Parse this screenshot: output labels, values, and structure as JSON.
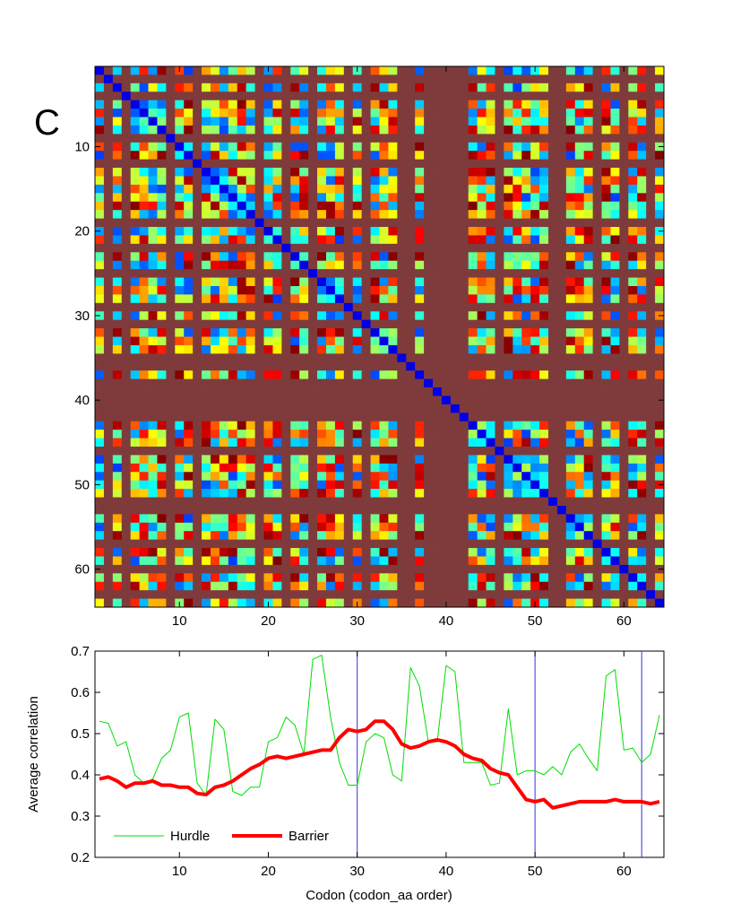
{
  "chart_data": [
    {
      "type": "heatmap",
      "panel_label": "C",
      "rows": 64,
      "cols": 64,
      "xlim": [
        0.5,
        64.5
      ],
      "ylim": [
        0.5,
        64.5
      ],
      "y_direction": "reversed",
      "xticks": [
        10,
        20,
        30,
        40,
        50,
        60
      ],
      "yticks": [
        10,
        20,
        30,
        40,
        50,
        60
      ],
      "colormap": "jet",
      "clim": [
        0,
        1
      ],
      "colors": {
        "masked_cell": "#7f3b3b",
        "jet_low": "#00008f",
        "jet_mid": "#80ff80",
        "jet_high": "#800000"
      },
      "masked_indices": [
        2,
        4,
        9,
        12,
        19,
        22,
        25,
        29,
        31,
        35,
        36,
        38,
        39,
        40,
        41,
        42,
        46,
        52,
        53,
        57,
        60,
        63
      ]
    },
    {
      "type": "line",
      "xlabel": "Codon (codon_aa order)",
      "ylabel": "Average correlation",
      "xlim": [
        0.5,
        64.5
      ],
      "ylim": [
        0.2,
        0.7
      ],
      "xticks": [
        10,
        20,
        30,
        40,
        50,
        60
      ],
      "yticks": [
        0.2,
        0.3,
        0.4,
        0.5,
        0.6,
        0.7
      ],
      "grid": false,
      "legend_position": "bottom-left",
      "x": [
        1,
        2,
        3,
        4,
        5,
        6,
        7,
        8,
        9,
        10,
        11,
        12,
        13,
        14,
        15,
        16,
        17,
        18,
        19,
        20,
        21,
        22,
        23,
        24,
        25,
        26,
        27,
        28,
        29,
        30,
        31,
        32,
        33,
        34,
        35,
        36,
        37,
        38,
        39,
        40,
        41,
        42,
        43,
        44,
        45,
        46,
        47,
        48,
        49,
        50,
        51,
        52,
        53,
        54,
        55,
        56,
        57,
        58,
        59,
        60,
        61,
        62,
        63,
        64
      ],
      "series": [
        {
          "name": "Hurdle",
          "color": "#00dd00",
          "line_width": "thin",
          "values": [
            0.53,
            0.525,
            0.47,
            0.48,
            0.4,
            0.38,
            0.39,
            0.44,
            0.46,
            0.54,
            0.55,
            0.38,
            0.35,
            0.535,
            0.51,
            0.36,
            0.35,
            0.37,
            0.37,
            0.48,
            0.49,
            0.54,
            0.52,
            0.45,
            0.68,
            0.69,
            0.54,
            0.43,
            0.375,
            0.375,
            0.48,
            0.5,
            0.49,
            0.4,
            0.385,
            0.66,
            0.615,
            0.48,
            0.48,
            0.665,
            0.65,
            0.43,
            0.43,
            0.43,
            0.375,
            0.38,
            0.56,
            0.4,
            0.41,
            0.41,
            0.4,
            0.42,
            0.4,
            0.455,
            0.475,
            0.44,
            0.41,
            0.64,
            0.655,
            0.46,
            0.465,
            0.43,
            0.45,
            0.545
          ]
        },
        {
          "name": "Barrier",
          "color": "#ff0000",
          "line_width": "thick",
          "values": [
            0.39,
            0.395,
            0.385,
            0.37,
            0.38,
            0.38,
            0.385,
            0.375,
            0.375,
            0.37,
            0.37,
            0.355,
            0.352,
            0.37,
            0.375,
            0.385,
            0.4,
            0.415,
            0.425,
            0.44,
            0.445,
            0.44,
            0.445,
            0.45,
            0.455,
            0.46,
            0.46,
            0.49,
            0.51,
            0.505,
            0.51,
            0.53,
            0.53,
            0.51,
            0.475,
            0.465,
            0.47,
            0.48,
            0.485,
            0.48,
            0.47,
            0.45,
            0.44,
            0.435,
            0.415,
            0.405,
            0.4,
            0.37,
            0.34,
            0.335,
            0.34,
            0.32,
            0.325,
            0.33,
            0.335,
            0.335,
            0.335,
            0.335,
            0.34,
            0.335,
            0.335,
            0.335,
            0.33,
            0.335
          ]
        }
      ],
      "vertical_lines": [
        30,
        50,
        62
      ],
      "vertical_line_color": "#3333dd"
    }
  ]
}
